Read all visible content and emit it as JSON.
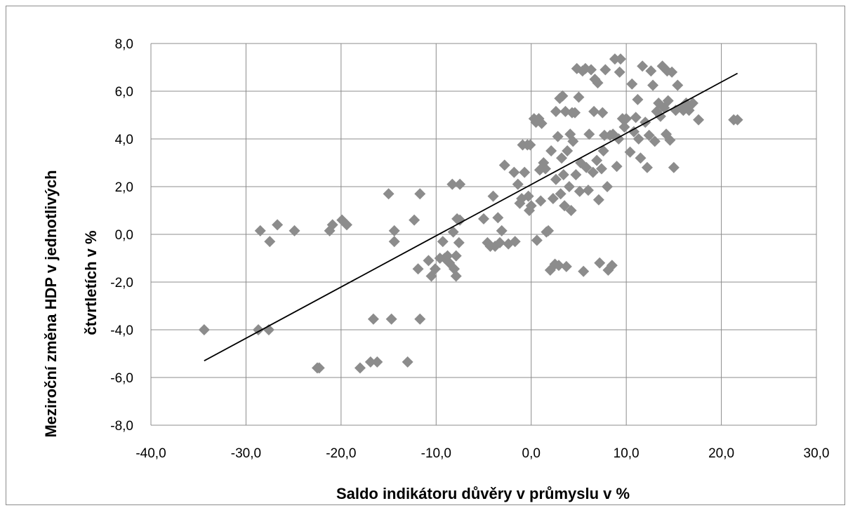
{
  "chart_data": {
    "type": "scatter",
    "title": "",
    "xlabel": "Saldo indikátoru důvěry v průmyslu v %",
    "ylabel_line1": "Meziroční  změna HDP v jednotlivých",
    "ylabel_line2": "čtvrtletích v %",
    "xlim": [
      -40,
      30
    ],
    "ylim": [
      -8,
      8
    ],
    "x_ticks": [
      -40,
      -30,
      -20,
      -10,
      0,
      10,
      20,
      30
    ],
    "y_ticks": [
      -8,
      -6,
      -4,
      -2,
      0,
      2,
      4,
      6,
      8
    ],
    "x_tick_labels": [
      "-40,0",
      "-30,0",
      "-20,0",
      "-10,0",
      "0,0",
      "10,0",
      "20,0",
      "30,0"
    ],
    "y_tick_labels": [
      "-8,0",
      "-6,0",
      "-4,0",
      "-2,0",
      "0,0",
      "2,0",
      "4,0",
      "6,0",
      "8,0"
    ],
    "grid": true,
    "legend": "none",
    "colors": {
      "marker": "#8c8c8c",
      "trendline": "#000000",
      "grid": "#8c8c8c"
    },
    "trendline": {
      "type": "linear",
      "x": [
        -34.4,
        21.7
      ],
      "y": [
        -5.3,
        6.75
      ]
    },
    "points": [
      [
        -34.4,
        -4.0
      ],
      [
        -28.7,
        -4.0
      ],
      [
        -27.6,
        -4.0
      ],
      [
        -28.5,
        0.15
      ],
      [
        -27.5,
        -0.3
      ],
      [
        -26.7,
        0.4
      ],
      [
        -24.9,
        0.15
      ],
      [
        -22.5,
        -5.6
      ],
      [
        -22.3,
        -5.6
      ],
      [
        -21.2,
        0.15
      ],
      [
        -20.9,
        0.4
      ],
      [
        -19.9,
        0.6
      ],
      [
        -19.4,
        0.4
      ],
      [
        -18.0,
        -5.6
      ],
      [
        -16.9,
        -5.35
      ],
      [
        -16.6,
        -3.55
      ],
      [
        -16.2,
        -5.35
      ],
      [
        -15.0,
        1.7
      ],
      [
        -14.7,
        -3.55
      ],
      [
        -14.4,
        0.15
      ],
      [
        -14.4,
        -0.3
      ],
      [
        -13.0,
        -5.35
      ],
      [
        -12.3,
        0.6
      ],
      [
        -11.9,
        -1.45
      ],
      [
        -11.7,
        1.7
      ],
      [
        -11.7,
        -3.55
      ],
      [
        -10.8,
        -1.1
      ],
      [
        -10.5,
        -1.75
      ],
      [
        -10.1,
        -1.45
      ],
      [
        -9.6,
        -1.0
      ],
      [
        -9.3,
        -0.3
      ],
      [
        -9.1,
        -1.0
      ],
      [
        -8.8,
        -0.9
      ],
      [
        -8.6,
        -1.2
      ],
      [
        -8.3,
        2.1
      ],
      [
        -8.2,
        0.1
      ],
      [
        -8.1,
        -1.45
      ],
      [
        -7.9,
        -0.9
      ],
      [
        -7.9,
        -1.75
      ],
      [
        -7.8,
        0.65
      ],
      [
        -7.6,
        -0.35
      ],
      [
        -7.5,
        2.1
      ],
      [
        -7.5,
        0.6
      ],
      [
        -5.0,
        0.65
      ],
      [
        -4.6,
        -0.35
      ],
      [
        -4.3,
        -0.5
      ],
      [
        -4.0,
        1.6
      ],
      [
        -3.8,
        -0.5
      ],
      [
        -3.5,
        0.7
      ],
      [
        -3.3,
        -0.35
      ],
      [
        -3.1,
        0.15
      ],
      [
        -2.8,
        2.9
      ],
      [
        -2.4,
        -0.4
      ],
      [
        -1.8,
        2.6
      ],
      [
        -1.7,
        -0.3
      ],
      [
        -1.4,
        2.1
      ],
      [
        -1.2,
        1.3
      ],
      [
        -1.0,
        1.5
      ],
      [
        -0.9,
        3.75
      ],
      [
        -0.7,
        2.6
      ],
      [
        -0.4,
        3.75
      ],
      [
        -0.3,
        1.6
      ],
      [
        -0.2,
        1.0
      ],
      [
        -0.1,
        3.75
      ],
      [
        0.0,
        1.2
      ],
      [
        0.3,
        4.85
      ],
      [
        0.5,
        4.7
      ],
      [
        0.6,
        -0.25
      ],
      [
        0.8,
        4.85
      ],
      [
        0.9,
        2.7
      ],
      [
        1.0,
        1.4
      ],
      [
        1.1,
        4.65
      ],
      [
        1.3,
        3.0
      ],
      [
        1.5,
        2.75
      ],
      [
        1.6,
        0.1
      ],
      [
        1.8,
        0.15
      ],
      [
        2.0,
        -1.5
      ],
      [
        2.1,
        3.5
      ],
      [
        2.3,
        1.5
      ],
      [
        2.5,
        -1.25
      ],
      [
        2.6,
        5.15
      ],
      [
        2.6,
        2.3
      ],
      [
        2.8,
        4.1
      ],
      [
        2.9,
        -1.3
      ],
      [
        3.0,
        5.7
      ],
      [
        3.1,
        1.7
      ],
      [
        3.2,
        3.2
      ],
      [
        3.3,
        5.8
      ],
      [
        3.4,
        2.5
      ],
      [
        3.5,
        1.2
      ],
      [
        3.6,
        5.15
      ],
      [
        3.7,
        -1.35
      ],
      [
        3.8,
        3.5
      ],
      [
        4.0,
        2.0
      ],
      [
        4.1,
        4.2
      ],
      [
        4.2,
        1.0
      ],
      [
        4.3,
        5.1
      ],
      [
        4.4,
        3.9
      ],
      [
        4.6,
        5.1
      ],
      [
        4.7,
        2.5
      ],
      [
        4.8,
        6.95
      ],
      [
        5.0,
        5.75
      ],
      [
        5.1,
        1.8
      ],
      [
        5.2,
        3.0
      ],
      [
        5.4,
        6.85
      ],
      [
        5.5,
        -1.55
      ],
      [
        5.7,
        6.95
      ],
      [
        5.8,
        2.8
      ],
      [
        6.0,
        1.85
      ],
      [
        6.1,
        4.2
      ],
      [
        6.3,
        6.9
      ],
      [
        6.5,
        2.6
      ],
      [
        6.6,
        5.15
      ],
      [
        6.7,
        6.5
      ],
      [
        6.9,
        3.1
      ],
      [
        7.0,
        6.35
      ],
      [
        7.1,
        1.45
      ],
      [
        7.2,
        -1.2
      ],
      [
        7.4,
        2.75
      ],
      [
        7.5,
        5.1
      ],
      [
        7.6,
        3.5
      ],
      [
        7.7,
        4.15
      ],
      [
        7.8,
        6.9
      ],
      [
        8.0,
        2.0
      ],
      [
        8.1,
        -1.5
      ],
      [
        8.3,
        4.15
      ],
      [
        8.5,
        -1.3
      ],
      [
        8.6,
        4.2
      ],
      [
        8.8,
        7.35
      ],
      [
        9.0,
        2.85
      ],
      [
        9.2,
        4.0
      ],
      [
        9.3,
        6.8
      ],
      [
        9.4,
        7.35
      ],
      [
        9.6,
        4.85
      ],
      [
        9.8,
        4.5
      ],
      [
        10.0,
        4.85
      ],
      [
        10.4,
        3.45
      ],
      [
        10.6,
        6.3
      ],
      [
        10.8,
        4.3
      ],
      [
        11.0,
        4.9
      ],
      [
        11.2,
        5.65
      ],
      [
        11.3,
        4.0
      ],
      [
        11.5,
        3.2
      ],
      [
        11.7,
        7.05
      ],
      [
        12.0,
        4.7
      ],
      [
        12.2,
        2.8
      ],
      [
        12.4,
        4.15
      ],
      [
        12.6,
        6.85
      ],
      [
        12.8,
        6.25
      ],
      [
        13.0,
        3.9
      ],
      [
        13.2,
        5.15
      ],
      [
        13.4,
        5.5
      ],
      [
        13.6,
        4.95
      ],
      [
        13.8,
        7.05
      ],
      [
        14.0,
        5.3
      ],
      [
        14.2,
        4.2
      ],
      [
        14.3,
        6.85
      ],
      [
        14.4,
        5.6
      ],
      [
        14.6,
        3.95
      ],
      [
        14.8,
        6.8
      ],
      [
        15.0,
        2.8
      ],
      [
        15.2,
        5.2
      ],
      [
        15.4,
        6.25
      ],
      [
        15.8,
        5.3
      ],
      [
        16.0,
        5.2
      ],
      [
        16.3,
        5.5
      ],
      [
        16.6,
        5.2
      ],
      [
        17.0,
        5.5
      ],
      [
        17.6,
        4.8
      ],
      [
        21.3,
        4.8
      ],
      [
        21.7,
        4.8
      ]
    ]
  }
}
